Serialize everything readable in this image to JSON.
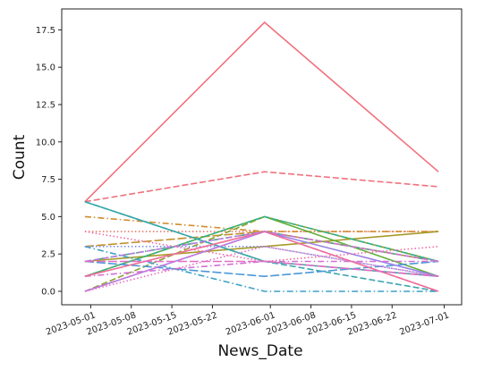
{
  "chart_data": {
    "type": "line",
    "xlabel": "News_Date",
    "ylabel": "Count",
    "x": [
      "2023-04-30",
      "2023-05-31",
      "2023-06-30"
    ],
    "xlim": [
      "2023-04-26",
      "2023-07-04"
    ],
    "ylim": [
      -0.9,
      18.9
    ],
    "yticks": [
      0.0,
      2.5,
      5.0,
      7.5,
      10.0,
      12.5,
      15.0,
      17.5
    ],
    "ytick_labels": [
      "0.0",
      "2.5",
      "5.0",
      "7.5",
      "10.0",
      "12.5",
      "15.0",
      "17.5"
    ],
    "xticks": [
      "2023-05-01",
      "2023-05-08",
      "2023-05-15",
      "2023-05-22",
      "2023-06-01",
      "2023-06-08",
      "2023-06-15",
      "2023-06-22",
      "2023-07-01"
    ],
    "grid": false,
    "legend": false,
    "series": [
      {
        "values": [
          6,
          18,
          8
        ],
        "color": "#f0717d",
        "dash": "solid"
      },
      {
        "values": [
          6,
          8,
          7
        ],
        "color": "#f0717d",
        "dash": "dashed"
      },
      {
        "values": [
          4,
          4,
          4
        ],
        "color": "#e8786a",
        "dash": "dotted"
      },
      {
        "values": [
          5,
          4,
          4
        ],
        "color": "#d38b2e",
        "dash": "dashdot"
      },
      {
        "values": [
          3,
          4,
          2
        ],
        "color": "#c28f2c",
        "dash": "longdash"
      },
      {
        "values": [
          2,
          3,
          4
        ],
        "color": "#a79a2a",
        "dash": "solid"
      },
      {
        "values": [
          0,
          5,
          2
        ],
        "color": "#8aa12a",
        "dash": "dashed"
      },
      {
        "values": [
          1,
          5,
          1
        ],
        "color": "#5fae3a",
        "dash": "solid"
      },
      {
        "values": [
          2,
          4,
          2
        ],
        "color": "#3bb06e",
        "dash": "dashdot"
      },
      {
        "values": [
          1,
          5,
          2
        ],
        "color": "#33b08c",
        "dash": "dashed"
      },
      {
        "values": [
          6,
          2,
          1
        ],
        "color": "#35ab9e",
        "dash": "solid"
      },
      {
        "values": [
          6,
          2,
          0
        ],
        "color": "#3aa6b0",
        "dash": "dashed"
      },
      {
        "values": [
          3,
          0,
          0
        ],
        "color": "#3da1c6",
        "dash": "dashdot"
      },
      {
        "values": [
          2,
          1,
          2
        ],
        "color": "#4b98d8",
        "dash": "longdash"
      },
      {
        "values": [
          3,
          3,
          1
        ],
        "color": "#7a8ee6",
        "dash": "dotted"
      },
      {
        "values": [
          0,
          4,
          1
        ],
        "color": "#9b82e8",
        "dash": "solid"
      },
      {
        "values": [
          2,
          4,
          0
        ],
        "color": "#b97ae2",
        "dash": "dashed"
      },
      {
        "values": [
          1,
          2,
          2
        ],
        "color": "#d26fd4",
        "dash": "dashdot"
      },
      {
        "values": [
          0,
          3,
          1
        ],
        "color": "#e46cc0",
        "dash": "dotted"
      },
      {
        "values": [
          4,
          2,
          3
        ],
        "color": "#ef6ca6",
        "dash": "dotted"
      },
      {
        "values": [
          1,
          4,
          0
        ],
        "color": "#f06d98",
        "dash": "solid"
      },
      {
        "values": [
          2,
          2,
          1
        ],
        "color": "#e06ec6",
        "dash": "longdash"
      },
      {
        "values": [
          0,
          4,
          2
        ],
        "color": "#cc74d6",
        "dash": "dashed"
      }
    ]
  }
}
